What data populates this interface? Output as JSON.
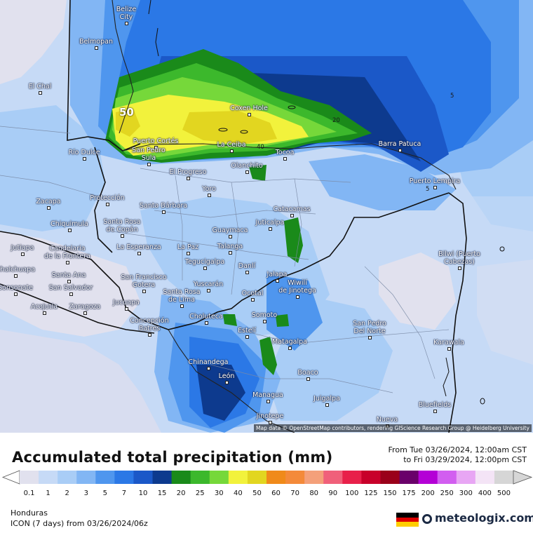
{
  "title": "Accumulated total precipitation (mm)",
  "period": {
    "from": "From Tue 03/26/2024, 12:00am CST",
    "to": "to Fri 03/29/2024, 12:00pm CST"
  },
  "region": "Honduras",
  "model": "ICON (7 days)  from  03/26/2024/06z",
  "brand": "meteologix.com",
  "attribution": "Map data © OpenStreetMap contributors, rendering GIScience Research Group @ Heidelberg University",
  "legend": {
    "levels": [
      "0.1",
      "1",
      "2",
      "3",
      "5",
      "7",
      "10",
      "15",
      "20",
      "25",
      "30",
      "40",
      "50",
      "60",
      "70",
      "80",
      "90",
      "100",
      "125",
      "150",
      "175",
      "200",
      "250",
      "300",
      "400",
      "500"
    ],
    "colors": [
      "#e1e1ee",
      "#c6daf6",
      "#a9cdf6",
      "#82b6f4",
      "#4f96ee",
      "#2b78e6",
      "#1b58c8",
      "#0d3a8e",
      "#1a8a1a",
      "#3cb82c",
      "#76d83a",
      "#f2f23c",
      "#e2d620",
      "#f08a1a",
      "#f48a3a",
      "#f4a07a",
      "#f0607a",
      "#e8204a",
      "#c8002a",
      "#9a001a",
      "#6a006a",
      "#b400d6",
      "#d25ef0",
      "#e8a6f4",
      "#f4e4f6",
      "#d6d6d6"
    ]
  },
  "contour_labels": [
    {
      "text": "50",
      "big": true
    },
    {
      "text": "40"
    },
    {
      "text": "20"
    },
    {
      "text": "5"
    },
    {
      "text": "5"
    }
  ],
  "cities": [
    {
      "name": "Belize\nCity"
    },
    {
      "name": "Belmopan"
    },
    {
      "name": "El Chal"
    },
    {
      "name": "Coxen Hole"
    },
    {
      "name": "Puerto Cortés"
    },
    {
      "name": "La Ceiba"
    },
    {
      "name": "San Pedro\nSula"
    },
    {
      "name": "Tocoa"
    },
    {
      "name": "Barra Patuca"
    },
    {
      "name": "Río Dulce"
    },
    {
      "name": "El Progreso"
    },
    {
      "name": "Olanchito"
    },
    {
      "name": "Puerto Lempira"
    },
    {
      "name": "Yoro"
    },
    {
      "name": "Zacapa"
    },
    {
      "name": "Protección"
    },
    {
      "name": "Santa Bárbara"
    },
    {
      "name": "Catacamas"
    },
    {
      "name": "Chiquimula"
    },
    {
      "name": "Santa Rosa\nde Copán"
    },
    {
      "name": "Juticalpa"
    },
    {
      "name": "Guaymaca"
    },
    {
      "name": "Jutiapa"
    },
    {
      "name": "Candelaria\nde la Frontera"
    },
    {
      "name": "La Esperanza"
    },
    {
      "name": "La Paz"
    },
    {
      "name": "Talanga"
    },
    {
      "name": "Tegucigalpa"
    },
    {
      "name": "Danlí"
    },
    {
      "name": "Bilwi (Puerto\nCabezas)"
    },
    {
      "name": "Chalchuapa"
    },
    {
      "name": "Santa Ana"
    },
    {
      "name": "Jalapa"
    },
    {
      "name": "Sonsonate"
    },
    {
      "name": "San Salvador"
    },
    {
      "name": "San Francisco\nGotera"
    },
    {
      "name": "Yuscarán"
    },
    {
      "name": "Wiwilí\nde Jinotega"
    },
    {
      "name": "Acajutla"
    },
    {
      "name": "Zaragoza"
    },
    {
      "name": "Jucuapa"
    },
    {
      "name": "Santa Rosa\nde Lima"
    },
    {
      "name": "Ocotal"
    },
    {
      "name": "Somoto"
    },
    {
      "name": "Choluteca"
    },
    {
      "name": "Concepción\nBatres"
    },
    {
      "name": "Estelí"
    },
    {
      "name": "San Pedro\nDel Norte"
    },
    {
      "name": "Matagalpa"
    },
    {
      "name": "Karawala"
    },
    {
      "name": "Chinandega"
    },
    {
      "name": "Boaco"
    },
    {
      "name": "León"
    },
    {
      "name": "Managua"
    },
    {
      "name": "Juigalpa"
    },
    {
      "name": "Bluefields"
    },
    {
      "name": "Jinotepe"
    },
    {
      "name": "Nueva"
    }
  ]
}
